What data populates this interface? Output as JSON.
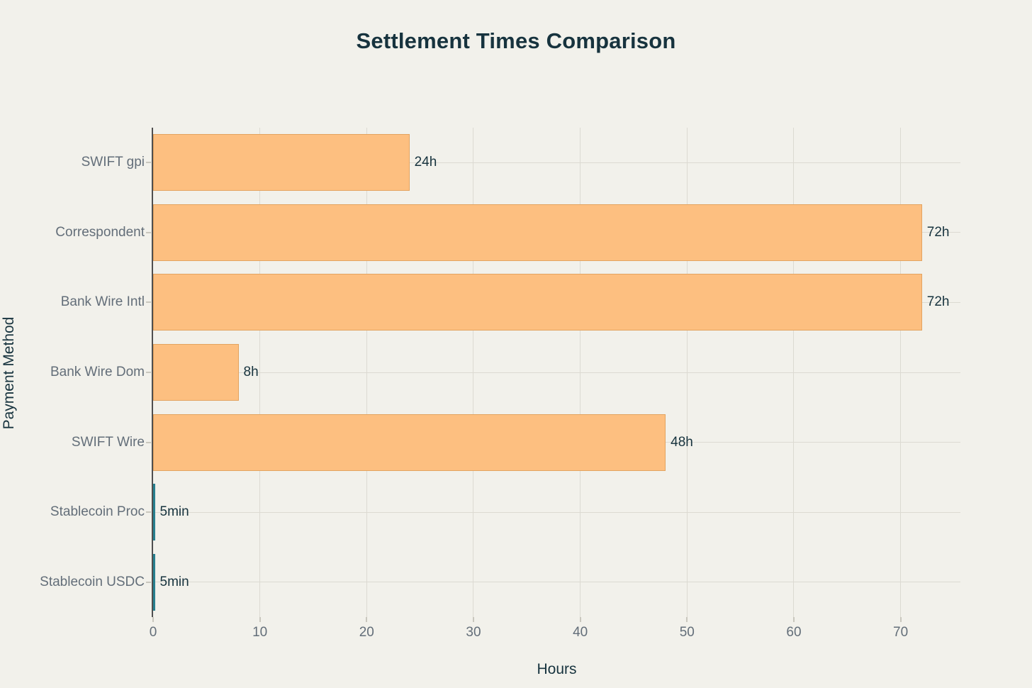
{
  "chart_data": {
    "type": "bar",
    "orientation": "horizontal",
    "title": "Settlement Times Comparison",
    "xlabel": "Hours",
    "ylabel": "Payment Method",
    "categories": [
      "SWIFT gpi",
      "Correspondent",
      "Bank Wire Intl",
      "Bank Wire Dom",
      "SWIFT Wire",
      "Stablecoin Proc",
      "Stablecoin USDC"
    ],
    "values_hours": [
      24,
      72,
      72,
      8,
      48,
      0.0833,
      0.0833
    ],
    "bar_labels": [
      "24h",
      "72h",
      "72h",
      "8h",
      "48h",
      "5min",
      "5min"
    ],
    "bar_color_keys": [
      "orange",
      "orange",
      "orange",
      "orange",
      "orange",
      "teal",
      "teal"
    ],
    "xlim": [
      0,
      75.6
    ],
    "xticks": [
      0,
      10,
      20,
      30,
      40,
      50,
      60,
      70
    ],
    "grid": "both",
    "legend": "none",
    "colors": {
      "background": "#f2f1eb",
      "orange_bar": "#fdbf80",
      "orange_bar_border": "#c7823c",
      "teal_bar": "#28808f",
      "title_text": "#17333e",
      "axis_title_text": "#17333e",
      "tick_text": "#636e79",
      "bar_label_text": "#17333e",
      "gridline": "#dcdad2",
      "axis_line": "#4f4f4f"
    }
  }
}
